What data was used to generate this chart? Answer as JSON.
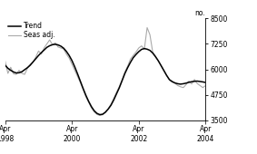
{
  "ylabel_right": "no.",
  "ylim": [
    3500,
    8500
  ],
  "yticks": [
    3500,
    4750,
    6000,
    7250,
    8500
  ],
  "xlim": [
    0,
    72
  ],
  "xtick_positions": [
    0,
    24,
    48,
    72
  ],
  "xtick_labels_line1": [
    "Apr",
    "Apr",
    "Apr",
    "Apr"
  ],
  "xtick_labels_line2": [
    "1998",
    "2000",
    "2002",
    "2004"
  ],
  "trend_color": "#000000",
  "seas_color": "#aaaaaa",
  "legend_entries": [
    "Trend",
    "Seas adj."
  ],
  "background_color": "#ffffff",
  "trend_x": [
    0,
    1,
    2,
    3,
    4,
    5,
    6,
    7,
    8,
    9,
    10,
    11,
    12,
    13,
    14,
    15,
    16,
    17,
    18,
    19,
    20,
    21,
    22,
    23,
    24,
    25,
    26,
    27,
    28,
    29,
    30,
    31,
    32,
    33,
    34,
    35,
    36,
    37,
    38,
    39,
    40,
    41,
    42,
    43,
    44,
    45,
    46,
    47,
    48,
    49,
    50,
    51,
    52,
    53,
    54,
    55,
    56,
    57,
    58,
    59,
    60,
    61,
    62,
    63,
    64,
    65,
    66,
    67,
    68,
    69,
    70,
    71,
    72
  ],
  "trend_y": [
    6200,
    6050,
    5950,
    5870,
    5820,
    5830,
    5880,
    5980,
    6080,
    6200,
    6360,
    6520,
    6680,
    6820,
    6950,
    7080,
    7160,
    7210,
    7230,
    7200,
    7140,
    7040,
    6880,
    6680,
    6430,
    6120,
    5780,
    5420,
    5060,
    4720,
    4420,
    4160,
    3960,
    3830,
    3770,
    3790,
    3890,
    4040,
    4230,
    4490,
    4790,
    5090,
    5440,
    5790,
    6080,
    6340,
    6570,
    6730,
    6870,
    6980,
    7020,
    6990,
    6930,
    6800,
    6620,
    6420,
    6180,
    5940,
    5700,
    5490,
    5390,
    5330,
    5290,
    5270,
    5290,
    5320,
    5360,
    5390,
    5410,
    5420,
    5400,
    5380,
    5350
  ],
  "seas_x": [
    0,
    1,
    2,
    3,
    4,
    5,
    6,
    7,
    8,
    9,
    10,
    11,
    12,
    13,
    14,
    15,
    16,
    17,
    18,
    19,
    20,
    21,
    22,
    23,
    24,
    25,
    26,
    27,
    28,
    29,
    30,
    31,
    32,
    33,
    34,
    35,
    36,
    37,
    38,
    39,
    40,
    41,
    42,
    43,
    44,
    45,
    46,
    47,
    48,
    49,
    50,
    51,
    52,
    53,
    54,
    55,
    56,
    57,
    58,
    59,
    60,
    61,
    62,
    63,
    64,
    65,
    66,
    67,
    68,
    69,
    70,
    71,
    72
  ],
  "seas_y": [
    6400,
    5800,
    6100,
    5780,
    5750,
    5950,
    5800,
    5750,
    6050,
    6250,
    6350,
    6600,
    6900,
    6750,
    7050,
    7250,
    7450,
    7200,
    7300,
    7100,
    7050,
    7000,
    6750,
    6550,
    6250,
    5950,
    5650,
    5350,
    5000,
    4650,
    4380,
    4100,
    3900,
    3780,
    3730,
    3760,
    3870,
    4060,
    4280,
    4570,
    4870,
    5150,
    5480,
    5870,
    6150,
    6500,
    6680,
    6850,
    7050,
    7150,
    6990,
    8050,
    7700,
    6850,
    6650,
    6420,
    6200,
    5960,
    5700,
    5500,
    5420,
    5310,
    5200,
    5140,
    5100,
    5250,
    5420,
    5280,
    5500,
    5300,
    5200,
    5100,
    5200
  ],
  "linewidth_trend": 1.1,
  "linewidth_seas": 0.8
}
